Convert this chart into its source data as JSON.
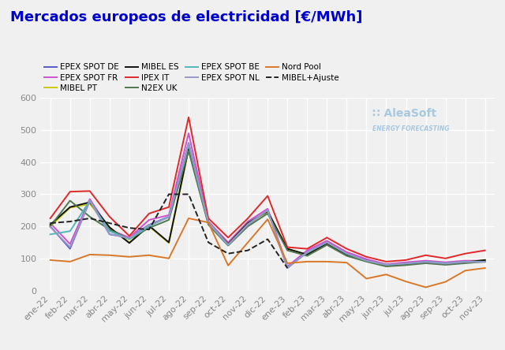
{
  "title": "Mercados europeos de electricidad [€/MWh]",
  "x_labels": [
    "ene-22",
    "feb-22",
    "mar-22",
    "abr-22",
    "may-22",
    "jun-22",
    "jul-22",
    "ago-22",
    "sep-22",
    "oct-22",
    "nov-22",
    "dic-22",
    "ene-23",
    "feb-23",
    "mar-23",
    "abr-23",
    "may-23",
    "jun-23",
    "jul-23",
    "ago-23",
    "sep-23",
    "oct-23",
    "nov-23"
  ],
  "series_order": [
    "EPEX SPOT DE",
    "EPEX SPOT FR",
    "MIBEL PT",
    "MIBEL ES",
    "IPEX IT",
    "N2EX UK",
    "EPEX SPOT BE",
    "EPEX SPOT NL",
    "Nord Pool",
    "MIBEL+Ajuste"
  ],
  "series": {
    "EPEX SPOT DE": {
      "color": "#5858c8",
      "linestyle": "-",
      "linewidth": 1.4,
      "values": [
        200,
        130,
        280,
        175,
        165,
        205,
        230,
        460,
        215,
        145,
        205,
        250,
        70,
        120,
        150,
        115,
        95,
        80,
        85,
        90,
        85,
        90,
        90
      ]
    },
    "EPEX SPOT FR": {
      "color": "#d050d0",
      "linestyle": "-",
      "linewidth": 1.4,
      "values": [
        210,
        145,
        285,
        190,
        165,
        220,
        235,
        490,
        215,
        150,
        215,
        255,
        75,
        125,
        155,
        120,
        98,
        82,
        88,
        93,
        88,
        93,
        93
      ]
    },
    "MIBEL PT": {
      "color": "#c8c800",
      "linestyle": "-",
      "linewidth": 1.4,
      "values": [
        200,
        258,
        270,
        195,
        150,
        200,
        148,
        440,
        210,
        145,
        210,
        245,
        130,
        110,
        145,
        112,
        92,
        78,
        82,
        88,
        83,
        88,
        95
      ]
    },
    "MIBEL ES": {
      "color": "#111111",
      "linestyle": "-",
      "linewidth": 1.4,
      "values": [
        205,
        260,
        275,
        197,
        148,
        202,
        150,
        442,
        210,
        145,
        210,
        247,
        130,
        112,
        147,
        112,
        93,
        78,
        82,
        88,
        83,
        88,
        95
      ]
    },
    "IPEX IT": {
      "color": "#e02828",
      "linestyle": "-",
      "linewidth": 1.4,
      "values": [
        225,
        308,
        310,
        230,
        170,
        240,
        260,
        540,
        225,
        165,
        225,
        295,
        135,
        130,
        165,
        130,
        105,
        90,
        95,
        110,
        100,
        115,
        125
      ]
    },
    "N2EX UK": {
      "color": "#507850",
      "linestyle": "-",
      "linewidth": 1.4,
      "values": [
        200,
        280,
        230,
        190,
        160,
        195,
        220,
        435,
        205,
        140,
        200,
        240,
        125,
        108,
        142,
        108,
        90,
        75,
        79,
        85,
        80,
        85,
        90
      ]
    },
    "EPEX SPOT BE": {
      "color": "#50b8b8",
      "linestyle": "-",
      "linewidth": 1.4,
      "values": [
        175,
        185,
        280,
        185,
        160,
        200,
        230,
        455,
        210,
        142,
        207,
        250,
        72,
        118,
        150,
        115,
        93,
        80,
        84,
        90,
        85,
        90,
        90
      ]
    },
    "EPEX SPOT NL": {
      "color": "#9898c8",
      "linestyle": "-",
      "linewidth": 1.4,
      "values": [
        198,
        135,
        279,
        176,
        163,
        204,
        228,
        458,
        213,
        143,
        205,
        250,
        70,
        120,
        150,
        115,
        93,
        80,
        84,
        89,
        84,
        89,
        89
      ]
    },
    "Nord Pool": {
      "color": "#d87828",
      "linestyle": "-",
      "linewidth": 1.4,
      "values": [
        95,
        90,
        112,
        110,
        105,
        110,
        100,
        225,
        212,
        78,
        150,
        222,
        85,
        90,
        90,
        87,
        37,
        50,
        28,
        10,
        27,
        62,
        70
      ]
    },
    "MIBEL+Ajuste": {
      "color": "#222222",
      "linestyle": "--",
      "linewidth": 1.4,
      "values": [
        210,
        215,
        225,
        210,
        195,
        190,
        300,
        300,
        150,
        115,
        125,
        160,
        70,
        null,
        null,
        null,
        null,
        null,
        null,
        null,
        null,
        null,
        null
      ]
    }
  },
  "ylim": [
    0,
    600
  ],
  "yticks": [
    0,
    100,
    200,
    300,
    400,
    500,
    600
  ],
  "grid": true,
  "background_color": "#f0f0f0",
  "title_color": "#0000cc",
  "title_fontsize": 13,
  "legend_fontsize": 7.5,
  "tick_fontsize": 8,
  "watermark_color": "#a8c8e0",
  "watermark_text": "∷ AleaSoft",
  "watermark_sub": "ENERGY FORECASTING"
}
